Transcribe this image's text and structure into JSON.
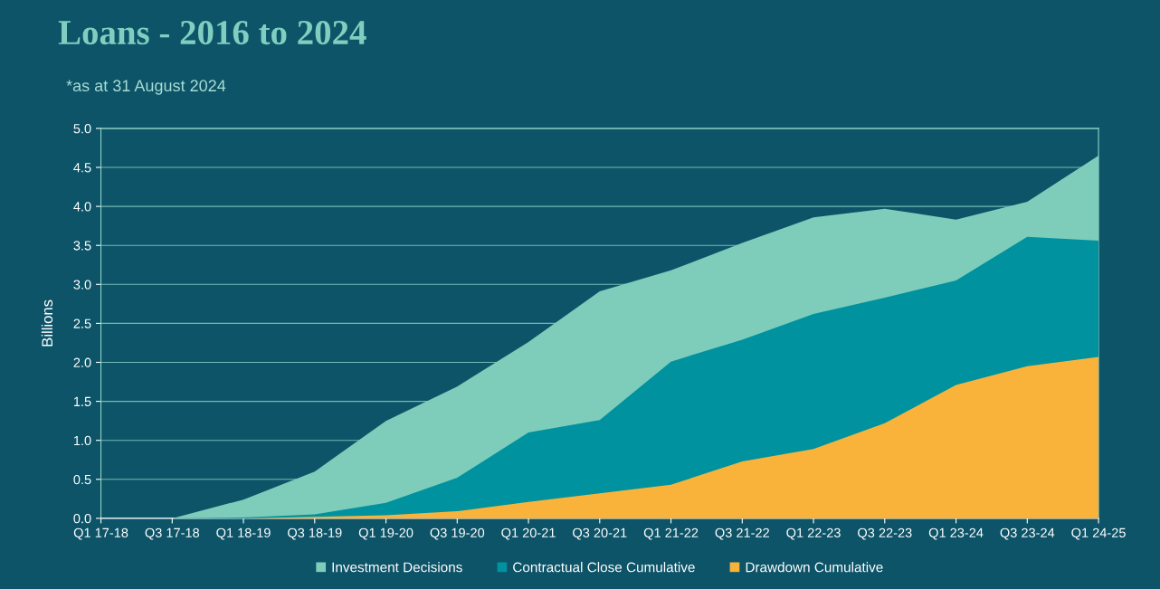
{
  "chart_data": {
    "type": "area",
    "title": "Loans - 2016 to 2024",
    "subtitle": "*as at 31 August 2024",
    "ylabel": "Billions",
    "categories": [
      "Q1 17-18",
      "Q3 17-18",
      "Q1 18-19",
      "Q3 18-19",
      "Q1 19-20",
      "Q3 19-20",
      "Q1 20-21",
      "Q3 20-21",
      "Q1 21-22",
      "Q3 21-22",
      "Q1 22-23",
      "Q3 22-23",
      "Q1 23-24",
      "Q3 23-24",
      "Q1 24-25"
    ],
    "series": [
      {
        "name": "Investment Decisions",
        "color": "#7ecdbb",
        "values": [
          0,
          0,
          0.24,
          0.6,
          1.25,
          1.69,
          2.26,
          2.91,
          3.18,
          3.53,
          3.86,
          3.97,
          3.83,
          4.06,
          4.65
        ]
      },
      {
        "name": "Contractual Close Cumulative",
        "color": "#00929f",
        "values": [
          0,
          0,
          0.01,
          0.05,
          0.2,
          0.52,
          1.1,
          1.26,
          2.01,
          2.29,
          2.62,
          2.83,
          3.05,
          3.61,
          3.56
        ]
      },
      {
        "name": "Drawdown Cumulative",
        "color": "#f9b33a",
        "values": [
          0,
          0,
          0,
          0.02,
          0.04,
          0.09,
          0.21,
          0.32,
          0.43,
          0.73,
          0.89,
          1.22,
          1.71,
          1.95,
          2.07
        ]
      }
    ],
    "ylim": [
      0,
      5
    ],
    "yticks": [
      {
        "value": 0,
        "label": "0.0"
      },
      {
        "value": 0.5,
        "label": "0.5"
      },
      {
        "value": 1,
        "label": "1.0"
      },
      {
        "value": 1.5,
        "label": "1.5"
      },
      {
        "value": 2,
        "label": "2.0"
      },
      {
        "value": 2.5,
        "label": "2.5"
      },
      {
        "value": 3,
        "label": "3.0"
      },
      {
        "value": 3.5,
        "label": "3.5"
      },
      {
        "value": 4,
        "label": "4.0"
      },
      {
        "value": 4.5,
        "label": "4.5"
      },
      {
        "value": 5,
        "label": "5.0"
      }
    ],
    "grid": "y",
    "legend": "bottom"
  }
}
